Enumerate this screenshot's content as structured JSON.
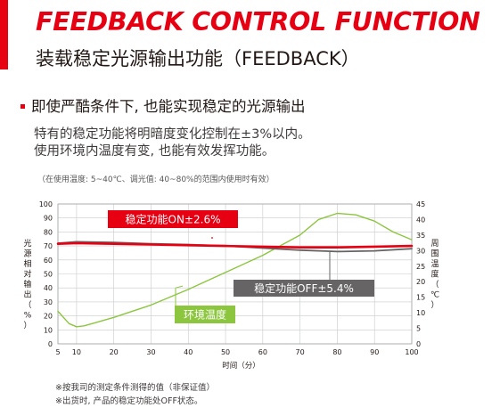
{
  "header": {
    "title": "FEEDBACK CONTROL FUNCTION",
    "subtitle": "装载稳定光源输出功能（FEEDBACK）",
    "accent_color": "#e60012"
  },
  "section": {
    "headline": "即使严酷条件下, 也能实现稳定的光源输出",
    "desc_line1": "特有的稳定功能将明暗度变化控制在±3%以内。",
    "desc_line2": "使用环境内温度有变, 也能有效发挥功能。",
    "conditions": "（在使用温度: 5~40℃、调光值: 40~80%的范围内使用时有效）"
  },
  "notes": {
    "line1": "※按我司的测定条件测得的值（非保证值）",
    "line2": "※出货时, 产品的稳定功能处OFF状态。"
  },
  "chart_data": {
    "type": "line",
    "xlabel": "时间（分）",
    "ylabel_left": "光源相对输出（%）",
    "ylabel_right": "周围温度（℃）",
    "xlim": [
      5,
      100
    ],
    "ylim_left": [
      0,
      100
    ],
    "ylim_right": [
      0,
      45
    ],
    "x_ticks": [
      5,
      10,
      20,
      30,
      40,
      50,
      60,
      70,
      80,
      90,
      100
    ],
    "y_ticks_left": [
      0,
      10,
      20,
      30,
      40,
      50,
      60,
      70,
      80,
      90,
      100
    ],
    "y_ticks_right": [
      0,
      5,
      10,
      15,
      20,
      25,
      30,
      35,
      40,
      45
    ],
    "grid": true,
    "series": [
      {
        "name": "稳定功能ON±2.6%",
        "axis": "left",
        "color": "#e60012",
        "x": [
          5,
          10,
          20,
          30,
          40,
          50,
          60,
          70,
          80,
          90,
          100
        ],
        "y": [
          71.5,
          72,
          71.5,
          71,
          70.5,
          70,
          69.5,
          69,
          69,
          69.5,
          70
        ]
      },
      {
        "name": "稳定功能OFF±5.4%",
        "axis": "left",
        "color": "#666464",
        "x": [
          5,
          10,
          20,
          30,
          40,
          50,
          60,
          70,
          80,
          90,
          100
        ],
        "y": [
          72,
          73,
          72.5,
          71.5,
          71,
          70,
          68.5,
          67,
          66,
          66.5,
          68
        ]
      },
      {
        "name": "环境温度",
        "axis": "right",
        "color": "#8cc63f",
        "x": [
          5,
          8,
          10,
          12,
          15,
          20,
          30,
          40,
          50,
          60,
          70,
          75,
          80,
          85,
          90,
          95,
          100
        ],
        "y": [
          10.5,
          6.5,
          5.5,
          5.8,
          6.8,
          8.5,
          12.5,
          17.5,
          23,
          28.5,
          35,
          40,
          42,
          41.5,
          39.5,
          36,
          33.5
        ]
      }
    ],
    "annotations": {
      "on_label": "稳定功能ON±2.6%",
      "off_label": "稳定功能OFF±5.4%",
      "temp_label": "环境温度"
    }
  }
}
